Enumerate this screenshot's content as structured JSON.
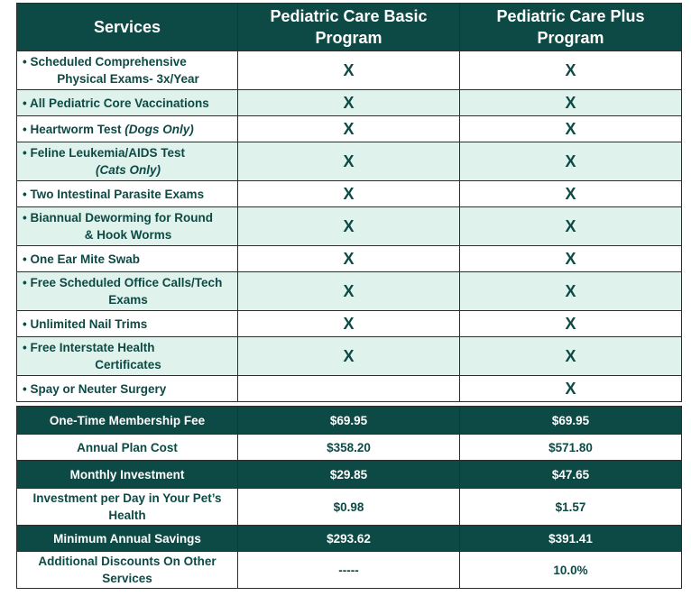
{
  "services_table": {
    "headers": {
      "services": "Services",
      "basic": [
        "Pediatric Care Basic",
        "Program"
      ],
      "plus": [
        "Pediatric Care Plus",
        "Program"
      ]
    },
    "rows": [
      {
        "bullet": "•",
        "lines": [
          "Scheduled Comprehensive",
          "Physical Exams- 3x/Year"
        ],
        "italic": "",
        "basic": "X",
        "plus": "X"
      },
      {
        "bullet": "•",
        "lines": [
          "All Pediatric Core Vaccinations"
        ],
        "italic": "",
        "basic": "X",
        "plus": "X"
      },
      {
        "bullet": "•",
        "lines": [
          "Heartworm Test "
        ],
        "italic": "(Dogs Only)",
        "basic": "X",
        "plus": "X"
      },
      {
        "bullet": "•",
        "lines": [
          "Feline Leukemia/AIDS Test"
        ],
        "italic": "(Cats Only)",
        "basic": "X",
        "plus": "X"
      },
      {
        "bullet": "•",
        "lines": [
          "Two Intestinal Parasite Exams"
        ],
        "italic": "",
        "basic": "X",
        "plus": "X"
      },
      {
        "bullet": "•",
        "lines": [
          "Biannual Deworming for Round",
          "& Hook Worms"
        ],
        "italic": "",
        "basic": "X",
        "plus": "X"
      },
      {
        "bullet": "•",
        "lines": [
          "One Ear Mite Swab"
        ],
        "italic": "",
        "basic": "X",
        "plus": "X"
      },
      {
        "bullet": "•",
        "lines": [
          "Free Scheduled Office Calls/Tech",
          "Exams"
        ],
        "italic": "",
        "basic": "X",
        "plus": "X"
      },
      {
        "bullet": "•",
        "lines": [
          "Unlimited Nail Trims"
        ],
        "italic": "",
        "basic": "X",
        "plus": "X"
      },
      {
        "bullet": "•",
        "lines": [
          "Free Interstate Health",
          "Certificates"
        ],
        "italic": "",
        "basic": "X",
        "plus": "X"
      },
      {
        "bullet": "•",
        "lines": [
          "Spay or Neuter Surgery"
        ],
        "italic": "",
        "basic": "",
        "plus": "X"
      }
    ]
  },
  "pricing_table": {
    "rows": [
      {
        "label": [
          "One-Time Membership Fee"
        ],
        "basic": "$69.95",
        "plus": "$69.95"
      },
      {
        "label": [
          "Annual Plan Cost"
        ],
        "basic": "$358.20",
        "plus": "$571.80"
      },
      {
        "label": [
          "Monthly Investment"
        ],
        "basic": "$29.85",
        "plus": "$47.65"
      },
      {
        "label": [
          "Investment per Day in Your Pet’s",
          "Health"
        ],
        "basic": "$0.98",
        "plus": "$1.57"
      },
      {
        "label": [
          "Minimum Annual Savings"
        ],
        "basic": "$293.62",
        "plus": "$391.41"
      },
      {
        "label": [
          "Additional Discounts On Other",
          "Services"
        ],
        "basic": "-----",
        "plus": "10.0%"
      }
    ]
  },
  "colors": {
    "dark_teal": "#0d4a45",
    "light_mint": "#dff2ec",
    "white": "#ffffff"
  }
}
